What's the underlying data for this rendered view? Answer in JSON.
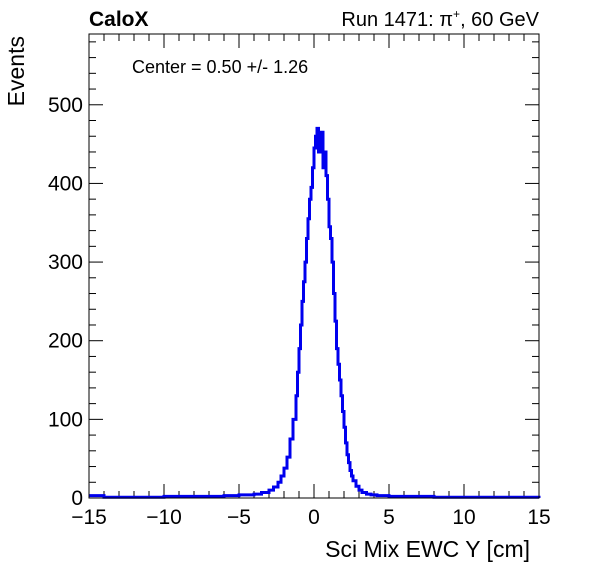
{
  "header": {
    "brand": "CaloX",
    "run_prefix": "Run 1471: ",
    "particle": "π",
    "charge": "+",
    "run_suffix": ", 60 GeV"
  },
  "annotation": {
    "text": "Center = 0.50 +/- 1.26"
  },
  "chart_data": {
    "type": "line",
    "xlabel": "Sci Mix EWC Y [cm]",
    "ylabel": "Events",
    "xlim": [
      -15,
      15
    ],
    "ylim": [
      0,
      590
    ],
    "x_ticks": [
      -15,
      -10,
      -5,
      0,
      5,
      10,
      15
    ],
    "x_tick_labels": [
      "−15",
      "−10",
      "−5",
      "0",
      "5",
      "10",
      "15"
    ],
    "y_ticks": [
      0,
      100,
      200,
      300,
      400,
      500
    ],
    "y_tick_labels": [
      "0",
      "100",
      "200",
      "300",
      "400",
      "500"
    ],
    "grid": false,
    "series_color": "#0000ee",
    "series": [
      {
        "x": [
          -15.0,
          -14.0,
          -12.0,
          -10.0,
          -8.0,
          -6.0,
          -5.0,
          -4.0,
          -3.5,
          -3.0,
          -2.7,
          -2.4,
          -2.2,
          -2.0,
          -1.8,
          -1.6,
          -1.4,
          -1.2,
          -1.1,
          -1.0,
          -0.9,
          -0.8,
          -0.7,
          -0.6,
          -0.5,
          -0.4,
          -0.3,
          -0.2,
          -0.1,
          0.0,
          0.1,
          0.2,
          0.3,
          0.4,
          0.5,
          0.6,
          0.7,
          0.8,
          0.9,
          1.0,
          1.1,
          1.2,
          1.3,
          1.4,
          1.5,
          1.6,
          1.7,
          1.8,
          1.9,
          2.0,
          2.1,
          2.2,
          2.3,
          2.4,
          2.5,
          2.6,
          2.8,
          3.0,
          3.2,
          3.5,
          3.8,
          4.2,
          5.0,
          6.0,
          8.0,
          10.0,
          12.0,
          14.0,
          15.0
        ],
        "values": [
          3,
          1,
          1,
          2,
          2,
          3,
          4,
          5,
          7,
          10,
          14,
          20,
          28,
          38,
          52,
          75,
          100,
          130,
          160,
          190,
          220,
          250,
          275,
          300,
          330,
          355,
          380,
          395,
          420,
          445,
          460,
          470,
          440,
          450,
          465,
          420,
          440,
          410,
          380,
          345,
          330,
          300,
          260,
          225,
          190,
          170,
          150,
          130,
          110,
          90,
          70,
          55,
          45,
          35,
          28,
          22,
          15,
          10,
          7,
          5,
          4,
          3,
          2,
          2,
          1,
          1,
          1,
          1,
          0
        ]
      }
    ]
  }
}
